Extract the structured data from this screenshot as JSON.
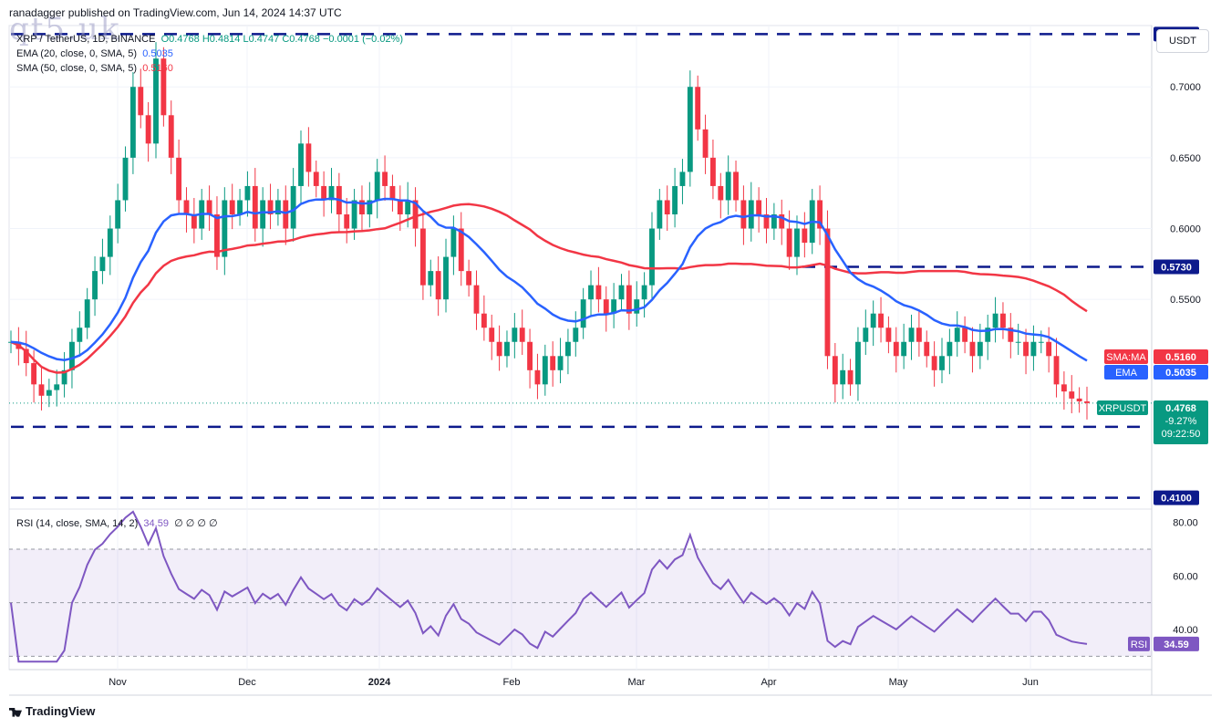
{
  "header": {
    "published_line": "ranadagger published on TradingView.com, Jun 14, 2024 14:37 UTC",
    "watermark": "qt5.uk"
  },
  "legend": {
    "symbol": "XRP / TetherUS, 1D, BINANCE",
    "ohlc_o": "O0.4768",
    "ohlc_h": "H0.4814",
    "ohlc_l": "L0.4747",
    "ohlc_c": "C0.4768",
    "change": "−0.0001 (−0.02%)",
    "ema_label": "EMA (20, close, 0, SMA, 5)",
    "ema_value": "0.5035",
    "sma_label": "SMA (50, close, 0, SMA, 5)",
    "sma_value": "0.5160"
  },
  "rsi_legend": {
    "label": "RSI (14, close, SMA, 14, 2)",
    "value": "34.59",
    "empties": "∅ ∅ ∅ ∅"
  },
  "currency": "USDT",
  "footer": {
    "brand": "TradingView"
  },
  "colors": {
    "up": "#089981",
    "down": "#f23645",
    "ema": "#2962ff",
    "sma": "#f23645",
    "rsi": "#7e57c2",
    "level_line": "#0d1a8c"
  },
  "chart_data": [
    {
      "type": "candlestick",
      "title": "XRP / TetherUS, 1D, BINANCE",
      "x_tick_labels": [
        "Nov",
        "Dec",
        "2024",
        "Feb",
        "Mar",
        "Apr",
        "May",
        "Jun"
      ],
      "y_tick_labels": [
        "0.7000",
        "0.6500",
        "0.6000",
        "0.5500"
      ],
      "ylim": [
        0.402,
        0.7433
      ],
      "horizontal_levels": [
        {
          "label": "0.7373",
          "value": 0.7373
        },
        {
          "label": "0.5730",
          "value": 0.573
        },
        {
          "label": "0.4600",
          "value": 0.46
        },
        {
          "label": "0.4100",
          "value": 0.41
        }
      ],
      "price_badges": [
        {
          "name": "SMA:MA",
          "value": "0.5160",
          "color": "#f23645"
        },
        {
          "name": "EMA",
          "value": "0.5035",
          "color": "#2962ff"
        },
        {
          "name": "XRPUSDT",
          "value": "0.4768",
          "change": "-9.27%",
          "timer": "09:22:50",
          "color": "#089981"
        }
      ],
      "last_close": 0.4768,
      "close_series_approx": [
        0.52,
        0.515,
        0.505,
        0.49,
        0.482,
        0.486,
        0.49,
        0.5,
        0.52,
        0.53,
        0.55,
        0.57,
        0.58,
        0.6,
        0.62,
        0.65,
        0.7,
        0.68,
        0.66,
        0.72,
        0.68,
        0.65,
        0.62,
        0.61,
        0.6,
        0.62,
        0.61,
        0.58,
        0.62,
        0.61,
        0.62,
        0.63,
        0.6,
        0.62,
        0.61,
        0.62,
        0.6,
        0.63,
        0.66,
        0.64,
        0.63,
        0.62,
        0.63,
        0.61,
        0.6,
        0.62,
        0.61,
        0.62,
        0.64,
        0.63,
        0.62,
        0.61,
        0.62,
        0.6,
        0.56,
        0.57,
        0.55,
        0.58,
        0.6,
        0.57,
        0.56,
        0.54,
        0.53,
        0.52,
        0.51,
        0.52,
        0.53,
        0.52,
        0.5,
        0.49,
        0.51,
        0.5,
        0.51,
        0.52,
        0.53,
        0.55,
        0.56,
        0.55,
        0.54,
        0.55,
        0.56,
        0.54,
        0.55,
        0.56,
        0.6,
        0.62,
        0.61,
        0.63,
        0.64,
        0.7,
        0.67,
        0.65,
        0.63,
        0.62,
        0.64,
        0.62,
        0.6,
        0.62,
        0.61,
        0.6,
        0.61,
        0.6,
        0.58,
        0.6,
        0.59,
        0.62,
        0.6,
        0.51,
        0.49,
        0.5,
        0.49,
        0.52,
        0.53,
        0.54,
        0.53,
        0.52,
        0.51,
        0.52,
        0.53,
        0.52,
        0.51,
        0.5,
        0.51,
        0.52,
        0.53,
        0.52,
        0.51,
        0.52,
        0.53,
        0.54,
        0.53,
        0.52,
        0.52,
        0.51,
        0.52,
        0.52,
        0.51,
        0.49,
        0.485,
        0.48,
        0.478,
        0.4768
      ]
    },
    {
      "type": "line",
      "title": "RSI (14, close, SMA, 14, 2)",
      "y_tick_labels": [
        "80.00",
        "60.00",
        "40.00"
      ],
      "ylim": [
        25,
        85
      ],
      "band": [
        30,
        70
      ],
      "last_value": 34.59,
      "badge": {
        "name": "RSI",
        "value": "34.59"
      }
    }
  ]
}
